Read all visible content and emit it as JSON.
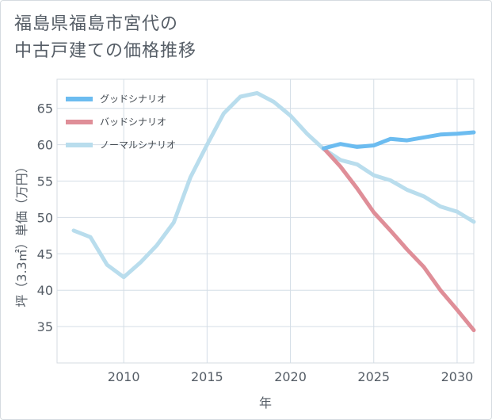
{
  "title": "福島県福島市宮代の\n中古戸建ての価格推移",
  "chart_data": {
    "type": "line",
    "title": "福島県福島市宮代の中古戸建ての価格推移",
    "xlabel": "年",
    "ylabel": "坪（3.3㎡）単価（万円）",
    "xlim": [
      2006,
      2031
    ],
    "ylim": [
      30,
      69
    ],
    "xticks": [
      2010,
      2015,
      2020,
      2025,
      2030
    ],
    "yticks": [
      35,
      40,
      45,
      50,
      55,
      60,
      65
    ],
    "grid": true,
    "legend_position": "top-left",
    "series": [
      {
        "name": "グッドシナリオ",
        "color": "#6cbcf0",
        "x": [
          2022,
          2023,
          2024,
          2025,
          2026,
          2027,
          2028,
          2029,
          2030,
          2031
        ],
        "y": [
          59.5,
          60.1,
          59.7,
          59.9,
          60.8,
          60.6,
          61.0,
          61.4,
          61.5,
          61.7
        ]
      },
      {
        "name": "バッドシナリオ",
        "color": "#df8e98",
        "x": [
          2022,
          2023,
          2024,
          2025,
          2026,
          2027,
          2028,
          2029,
          2030,
          2031
        ],
        "y": [
          59.5,
          57.0,
          54.0,
          50.7,
          48.2,
          45.6,
          43.2,
          40.0,
          37.3,
          34.5
        ]
      },
      {
        "name": "ノーマルシナリオ",
        "color": "#b9dded",
        "x": [
          2007,
          2008,
          2009,
          2010,
          2011,
          2012,
          2013,
          2014,
          2015,
          2016,
          2017,
          2018,
          2019,
          2020,
          2021,
          2022,
          2023,
          2024,
          2025,
          2026,
          2027,
          2028,
          2029,
          2030,
          2031
        ],
        "y": [
          48.2,
          47.3,
          43.5,
          41.8,
          43.8,
          46.2,
          49.3,
          55.5,
          60.0,
          64.3,
          66.6,
          67.1,
          65.9,
          64.0,
          61.5,
          59.4,
          57.9,
          57.3,
          55.8,
          55.1,
          53.8,
          52.9,
          51.5,
          50.8,
          49.4
        ]
      }
    ]
  }
}
